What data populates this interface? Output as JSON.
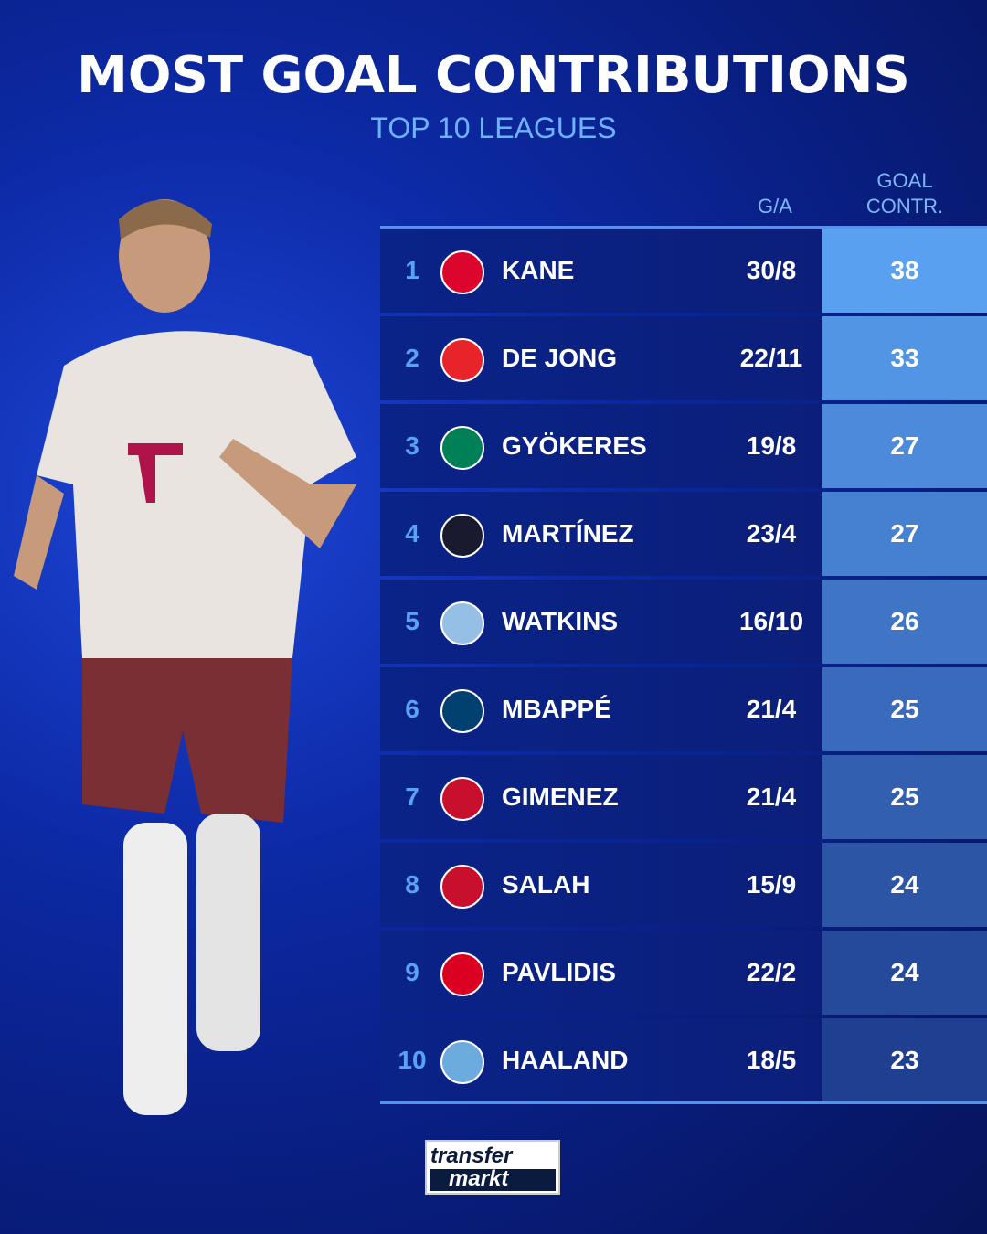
{
  "header": {
    "title": "MOST GOAL CONTRIBUTIONS",
    "subtitle": "TOP 10 LEAGUES"
  },
  "columns": {
    "ga": "G/A",
    "goal_contr_line1": "GOAL",
    "goal_contr_line2": "CONTR."
  },
  "colors": {
    "accent": "#5aa2f4",
    "gc_top": "#5aa0f0",
    "gc_bottom": "#1f3f90",
    "row_bg": "#0a2388"
  },
  "chart_data": {
    "type": "table",
    "title": "MOST GOAL CONTRIBUTIONS",
    "subtitle": "TOP 10 LEAGUES",
    "columns": [
      "",
      "",
      "",
      "G/A",
      "GOAL CONTR."
    ],
    "rows": [
      {
        "rank": "1",
        "club_icon": "bayern-munich-badge-icon",
        "badge_color": "#dc052d",
        "name": "KANE",
        "ga": "30/8",
        "goals": 30,
        "assists": 8,
        "gc": "38"
      },
      {
        "rank": "2",
        "club_icon": "psv-badge-icon",
        "badge_color": "#e8242a",
        "name": "DE JONG",
        "ga": "22/11",
        "goals": 22,
        "assists": 11,
        "gc": "33"
      },
      {
        "rank": "3",
        "club_icon": "sporting-cp-badge-icon",
        "badge_color": "#008057",
        "name": "GYÖKERES",
        "ga": "19/8",
        "goals": 19,
        "assists": 8,
        "gc": "27"
      },
      {
        "rank": "4",
        "club_icon": "inter-badge-icon",
        "badge_color": "#1a1a2e",
        "name": "MARTÍNEZ",
        "ga": "23/4",
        "goals": 23,
        "assists": 4,
        "gc": "27"
      },
      {
        "rank": "5",
        "club_icon": "aston-villa-badge-icon",
        "badge_color": "#95bfe5",
        "name": "WATKINS",
        "ga": "16/10",
        "goals": 16,
        "assists": 10,
        "gc": "26"
      },
      {
        "rank": "6",
        "club_icon": "psg-badge-icon",
        "badge_color": "#004170",
        "name": "MBAPPÉ",
        "ga": "21/4",
        "goals": 21,
        "assists": 4,
        "gc": "25"
      },
      {
        "rank": "7",
        "club_icon": "feyenoord-badge-icon",
        "badge_color": "#c8102e",
        "name": "GIMENEZ",
        "ga": "21/4",
        "goals": 21,
        "assists": 4,
        "gc": "25"
      },
      {
        "rank": "8",
        "club_icon": "liverpool-badge-icon",
        "badge_color": "#c8102e",
        "name": "SALAH",
        "ga": "15/9",
        "goals": 15,
        "assists": 9,
        "gc": "24"
      },
      {
        "rank": "9",
        "club_icon": "az-alkmaar-badge-icon",
        "badge_color": "#db0021",
        "name": "PAVLIDIS",
        "ga": "22/2",
        "goals": 22,
        "assists": 2,
        "gc": "24"
      },
      {
        "rank": "10",
        "club_icon": "manchester-city-badge-icon",
        "badge_color": "#6cabdd",
        "name": "HAALAND",
        "ga": "18/5",
        "goals": 18,
        "assists": 5,
        "gc": "23"
      }
    ]
  },
  "footer": {
    "logo_line1": "transfer",
    "logo_line2": "markt"
  }
}
